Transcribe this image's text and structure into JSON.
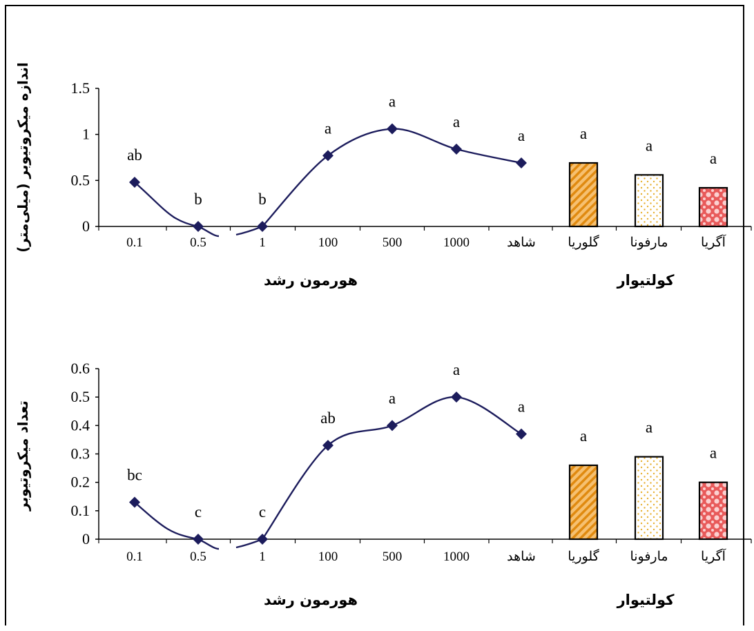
{
  "chart_data": [
    {
      "type": "line+bar",
      "ylabel": "اندازه میکروتیوبر (میلی‌متر)",
      "ylim": [
        0,
        1.5
      ],
      "yticks": [
        "0",
        "0.5",
        "1",
        "1.5"
      ],
      "categories": [
        "0.1",
        "0.5",
        "1",
        "100",
        "500",
        "1000",
        "شاهد",
        "گلوریا",
        "مارفونا",
        "آگریا"
      ],
      "hormone_group_label": "هورمون رشد",
      "cultivar_group_label": "کولتیوار",
      "line_series": {
        "values": [
          0.48,
          0.0,
          0.0,
          0.77,
          1.06,
          0.84,
          0.69
        ],
        "letters": [
          "ab",
          "b",
          "b",
          "a",
          "a",
          "a",
          "a"
        ],
        "color": "#1c1c5c"
      },
      "bar_series": {
        "values": [
          0.69,
          0.56,
          0.42
        ],
        "letters": [
          "a",
          "a",
          "a"
        ],
        "colors": [
          "#f0a030",
          "#f0d060",
          "#f07070"
        ]
      }
    },
    {
      "type": "line+bar",
      "ylabel": "تعداد میکروتیوبر",
      "ylim": [
        0,
        0.6
      ],
      "yticks": [
        "0",
        "0.1",
        "0.2",
        "0.3",
        "0.4",
        "0.5",
        "0.6"
      ],
      "categories": [
        "0.1",
        "0.5",
        "1",
        "100",
        "500",
        "1000",
        "شاهد",
        "گلوریا",
        "مارفونا",
        "آگریا"
      ],
      "hormone_group_label": "هورمون رشد",
      "cultivar_group_label": "کولتیوار",
      "line_series": {
        "values": [
          0.13,
          0.0,
          0.0,
          0.33,
          0.4,
          0.5,
          0.37
        ],
        "letters": [
          "bc",
          "c",
          "c",
          "ab",
          "a",
          "a",
          "a"
        ],
        "color": "#1c1c5c"
      },
      "bar_series": {
        "values": [
          0.26,
          0.29,
          0.2
        ],
        "letters": [
          "a",
          "a",
          "a"
        ],
        "colors": [
          "#f0a030",
          "#f0d060",
          "#f07070"
        ]
      }
    }
  ]
}
